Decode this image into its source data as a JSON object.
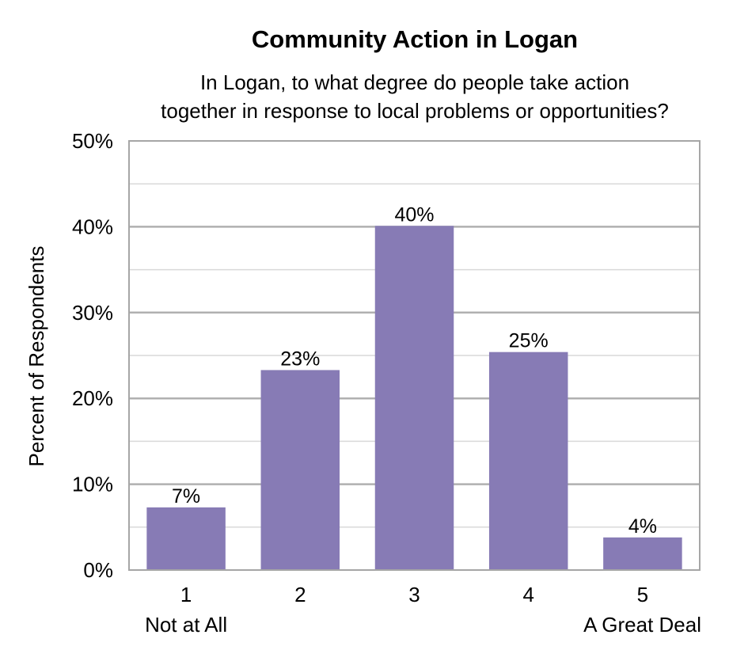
{
  "chart_data": {
    "type": "bar",
    "title": "Community Action in Logan",
    "subtitle_lines": [
      "In Logan, to what degree do people take action",
      "together in response to local problems or opportunities?"
    ],
    "ylabel": "Percent of Respondents",
    "xlabel": "",
    "categories": [
      "1",
      "2",
      "3",
      "4",
      "5"
    ],
    "category_sublabels": [
      "Not at All",
      "",
      "",
      "",
      "A Great Deal"
    ],
    "values": [
      7.3,
      23.3,
      40.1,
      25.4,
      3.8
    ],
    "data_labels": [
      "7%",
      "23%",
      "40%",
      "25%",
      "4%"
    ],
    "ylim": [
      0,
      50
    ],
    "y_ticks": [
      0,
      10,
      20,
      30,
      40,
      50
    ],
    "y_tick_labels": [
      "0%",
      "10%",
      "20%",
      "30%",
      "40%",
      "50%"
    ],
    "minor_gridlines_every": 5,
    "grid": true,
    "legend": "none",
    "colors": {
      "bar": "#877bb5",
      "major_grid": "#b0b0b0",
      "minor_grid": "#d9d9d9",
      "frame": "#a6a6a6"
    }
  }
}
